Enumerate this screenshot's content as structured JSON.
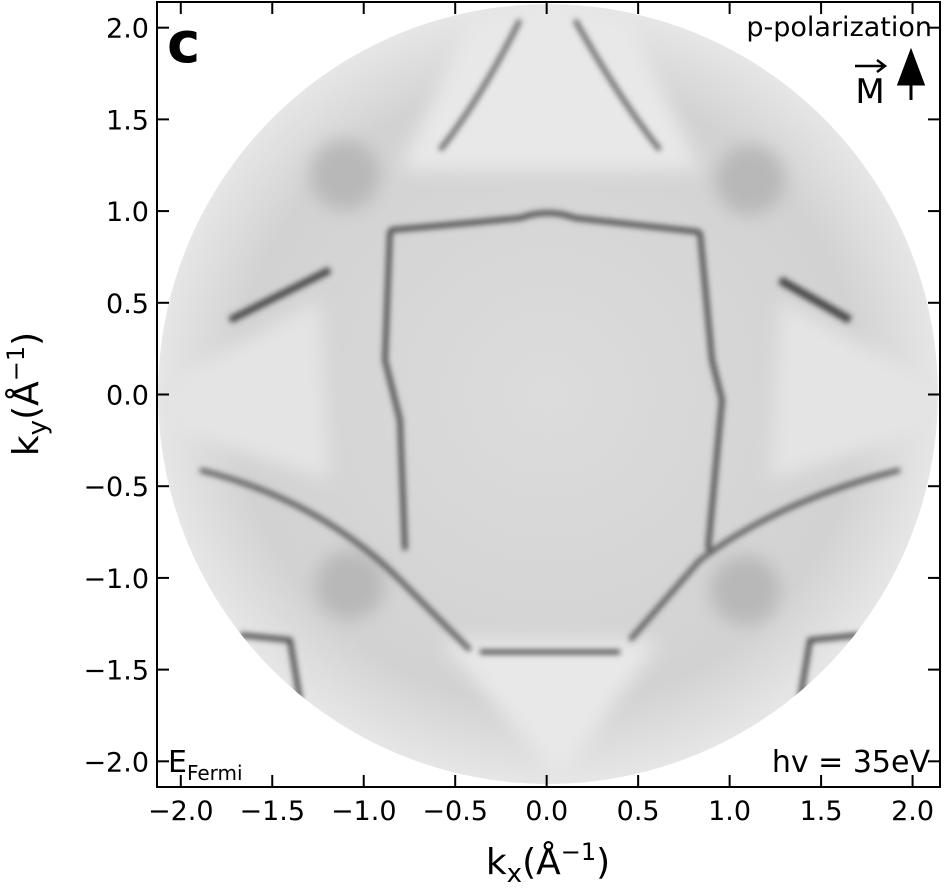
{
  "chart_data": {
    "type": "image",
    "panel_label": "c",
    "polarization": "p-polarization",
    "vector_label": "M",
    "energy_label": {
      "base": "E",
      "sub": "Fermi"
    },
    "photon_label": "hv = 35eV",
    "x_label": {
      "base": "k",
      "sub": "x",
      "mid": "(Å",
      "sup": "−1",
      "end": ")"
    },
    "y_label": {
      "base": "k",
      "sub": "y",
      "mid": "(Å",
      "sup": "−1",
      "end": ")"
    },
    "xlim": [
      -2.13,
      2.15
    ],
    "ylim": [
      -2.14,
      2.14
    ],
    "xticks": [
      {
        "value": -2,
        "label": "−2.0"
      },
      {
        "value": -1.5,
        "label": "−1.5"
      },
      {
        "value": -1,
        "label": "−1.0"
      },
      {
        "value": -0.5,
        "label": "−0.5"
      },
      {
        "value": 0,
        "label": "0.0"
      },
      {
        "value": 0.5,
        "label": "0.5"
      },
      {
        "value": 1,
        "label": "1.0"
      },
      {
        "value": 1.5,
        "label": "1.5"
      },
      {
        "value": 2,
        "label": "2.0"
      }
    ],
    "yticks": [
      {
        "value": -2,
        "label": "−2.0"
      },
      {
        "value": -1.5,
        "label": "−1.5"
      },
      {
        "value": -1,
        "label": "−1.0"
      },
      {
        "value": -0.5,
        "label": "−0.5"
      },
      {
        "value": 0,
        "label": "0.0"
      },
      {
        "value": 0.5,
        "label": "0.5"
      },
      {
        "value": 1,
        "label": "1.0"
      },
      {
        "value": 1.5,
        "label": "1.5"
      },
      {
        "value": 2,
        "label": "2.0"
      }
    ]
  }
}
